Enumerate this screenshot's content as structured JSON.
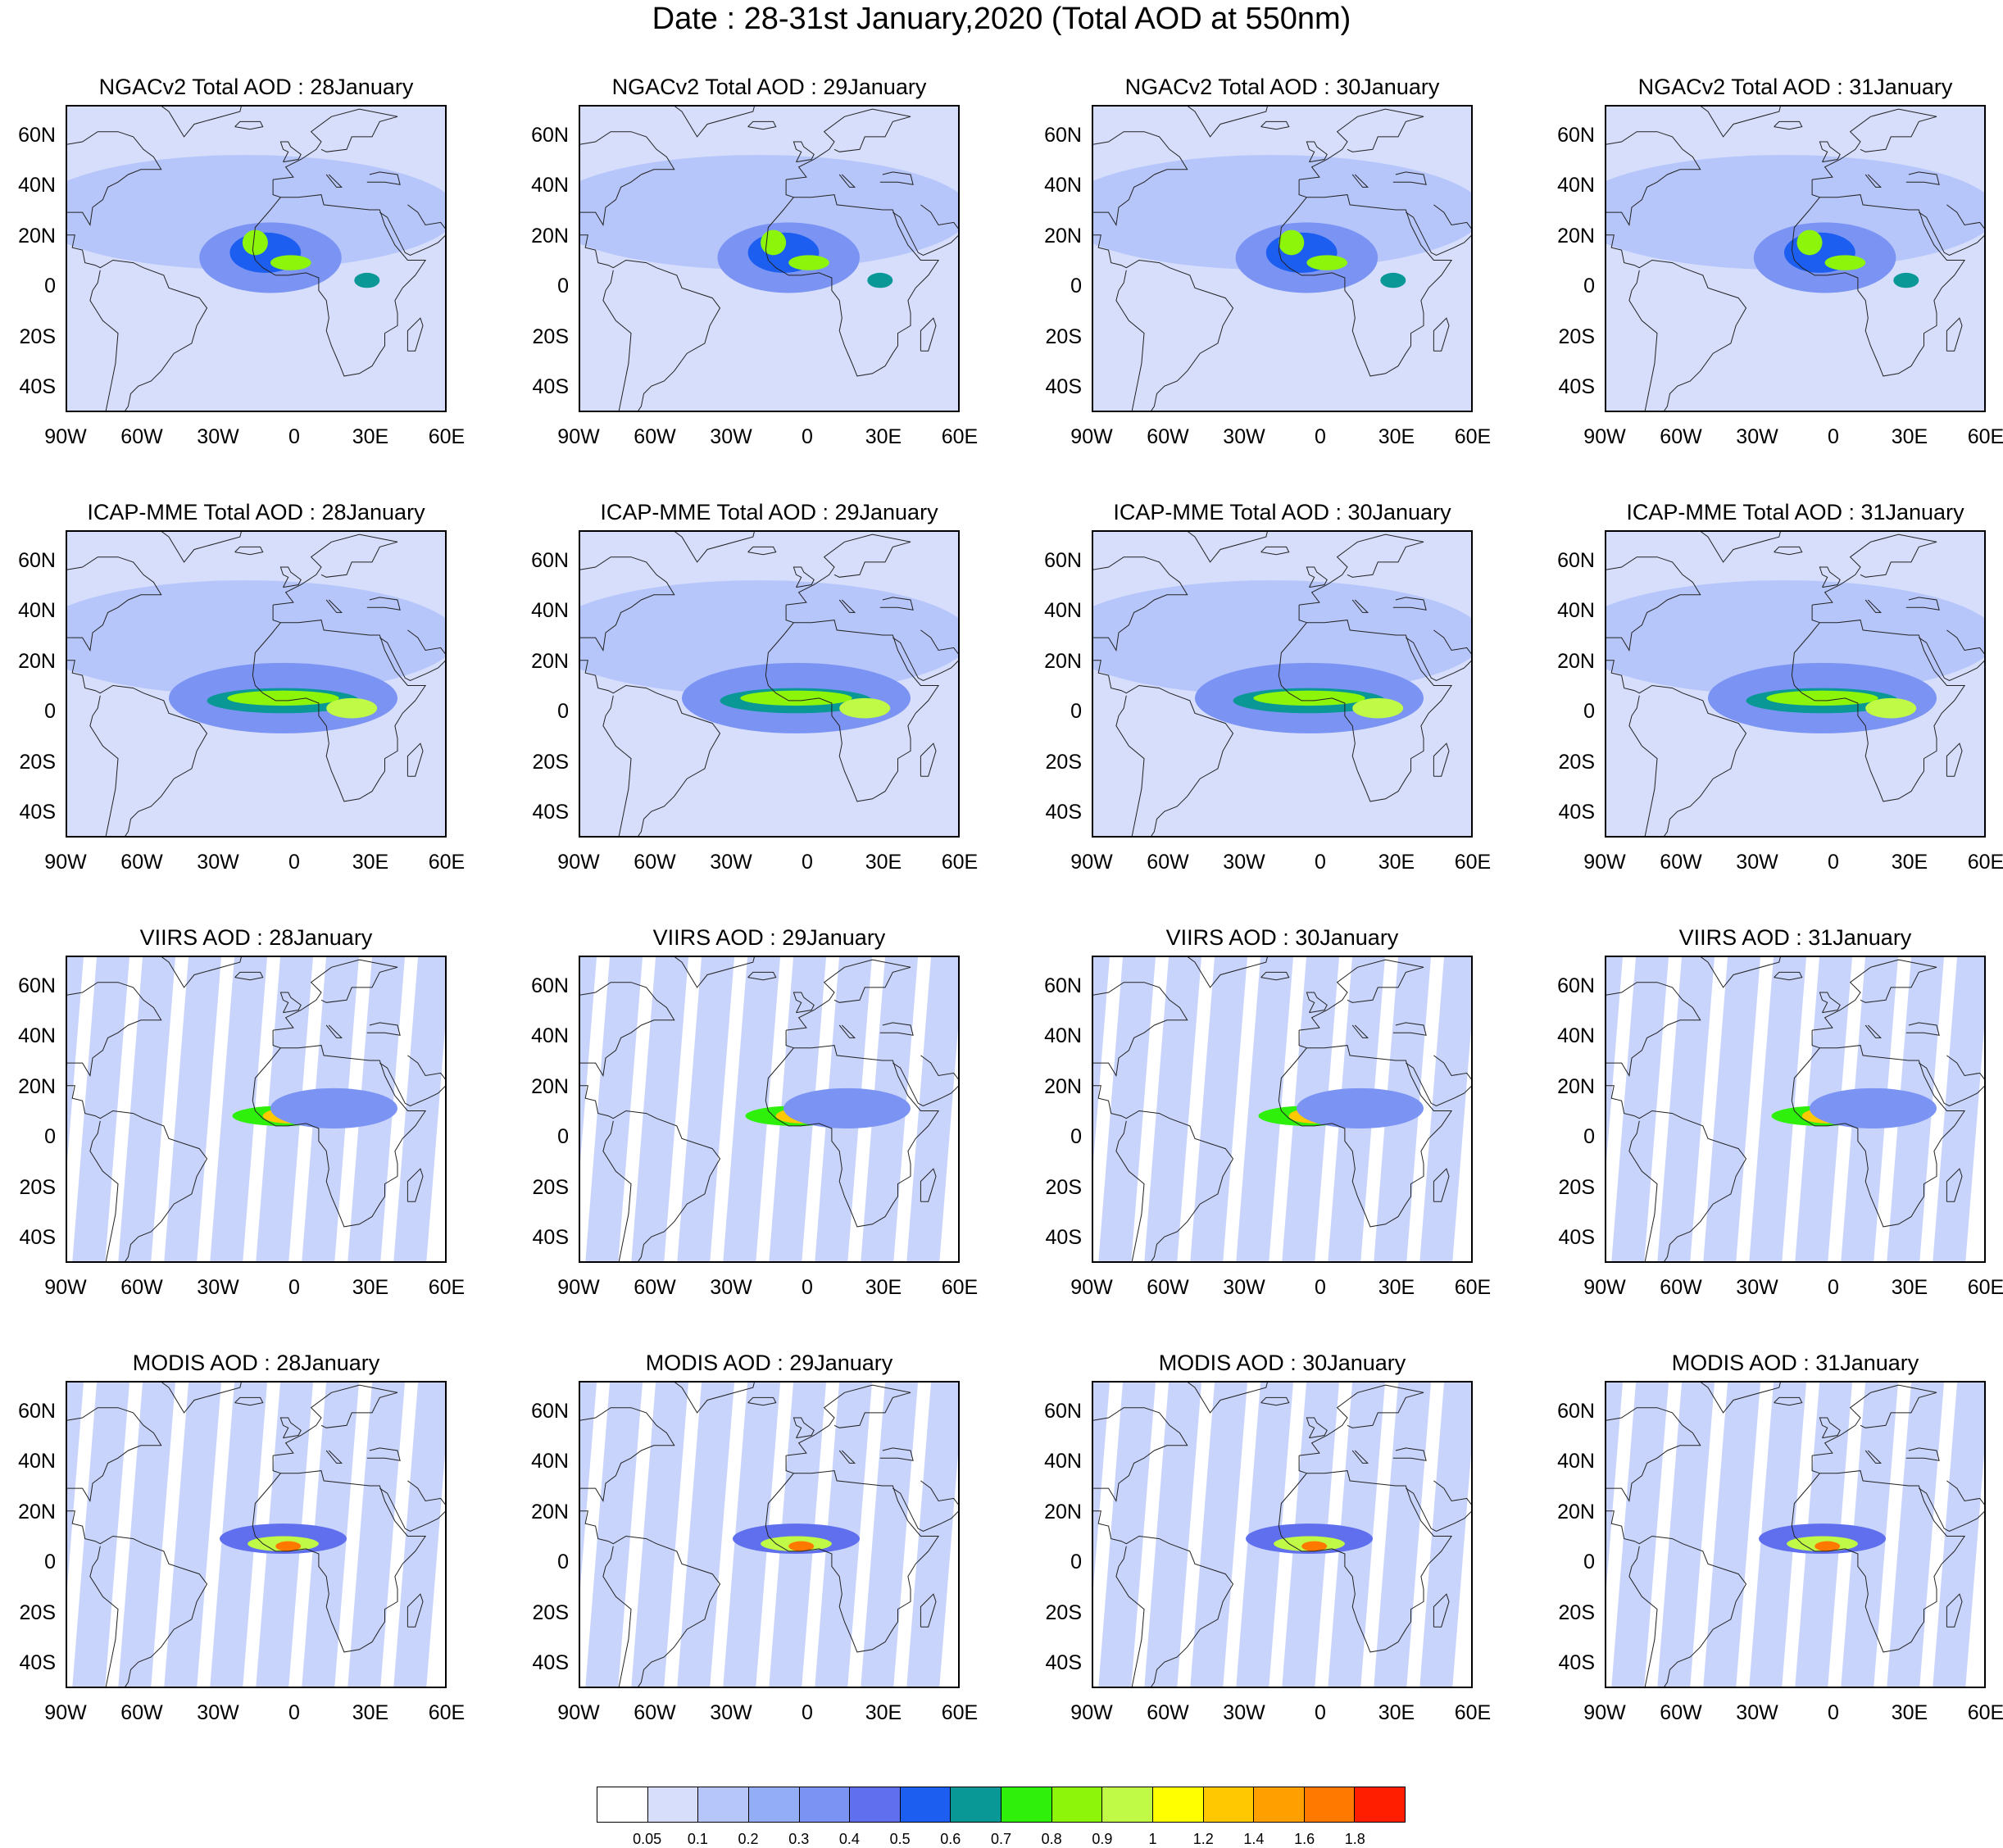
{
  "title": "Date : 28-31st January,2020 (Total AOD at 550nm)",
  "lat_ticks": [
    "60N",
    "40N",
    "20N",
    "0",
    "20S",
    "40S"
  ],
  "lon_ticks": [
    "90W",
    "60W",
    "30W",
    "0",
    "30E",
    "60E"
  ],
  "panels": [
    {
      "label": "NGACv2 Total AOD : 28January"
    },
    {
      "label": "NGACv2 Total AOD : 29January"
    },
    {
      "label": "NGACv2 Total AOD : 30January"
    },
    {
      "label": "NGACv2 Total AOD : 31January"
    },
    {
      "label": "ICAP-MME Total AOD : 28January"
    },
    {
      "label": "ICAP-MME Total AOD : 29January"
    },
    {
      "label": "ICAP-MME Total AOD : 30January"
    },
    {
      "label": "ICAP-MME Total AOD : 31January"
    },
    {
      "label": "VIIRS AOD : 28January"
    },
    {
      "label": "VIIRS AOD : 29January"
    },
    {
      "label": "VIIRS AOD : 30January"
    },
    {
      "label": "VIIRS AOD : 31January"
    },
    {
      "label": "MODIS AOD : 28January"
    },
    {
      "label": "MODIS AOD : 29January"
    },
    {
      "label": "MODIS AOD : 30January"
    },
    {
      "label": "MODIS AOD : 31January"
    }
  ],
  "colorbar": {
    "colors": [
      "#ffffff",
      "#d6defc",
      "#b6c6fa",
      "#93adf7",
      "#7b94f4",
      "#5f6fee",
      "#1b5ef0",
      "#0a9896",
      "#2ef00a",
      "#8cf50a",
      "#c0fa46",
      "#ffff00",
      "#ffc800",
      "#ffa000",
      "#ff7800",
      "#ff1e00"
    ],
    "labels": [
      "0.05",
      "0.1",
      "0.2",
      "0.3",
      "0.4",
      "0.5",
      "0.6",
      "0.7",
      "0.8",
      "0.9",
      "1",
      "1.2",
      "1.4",
      "1.6",
      "1.8"
    ]
  }
}
